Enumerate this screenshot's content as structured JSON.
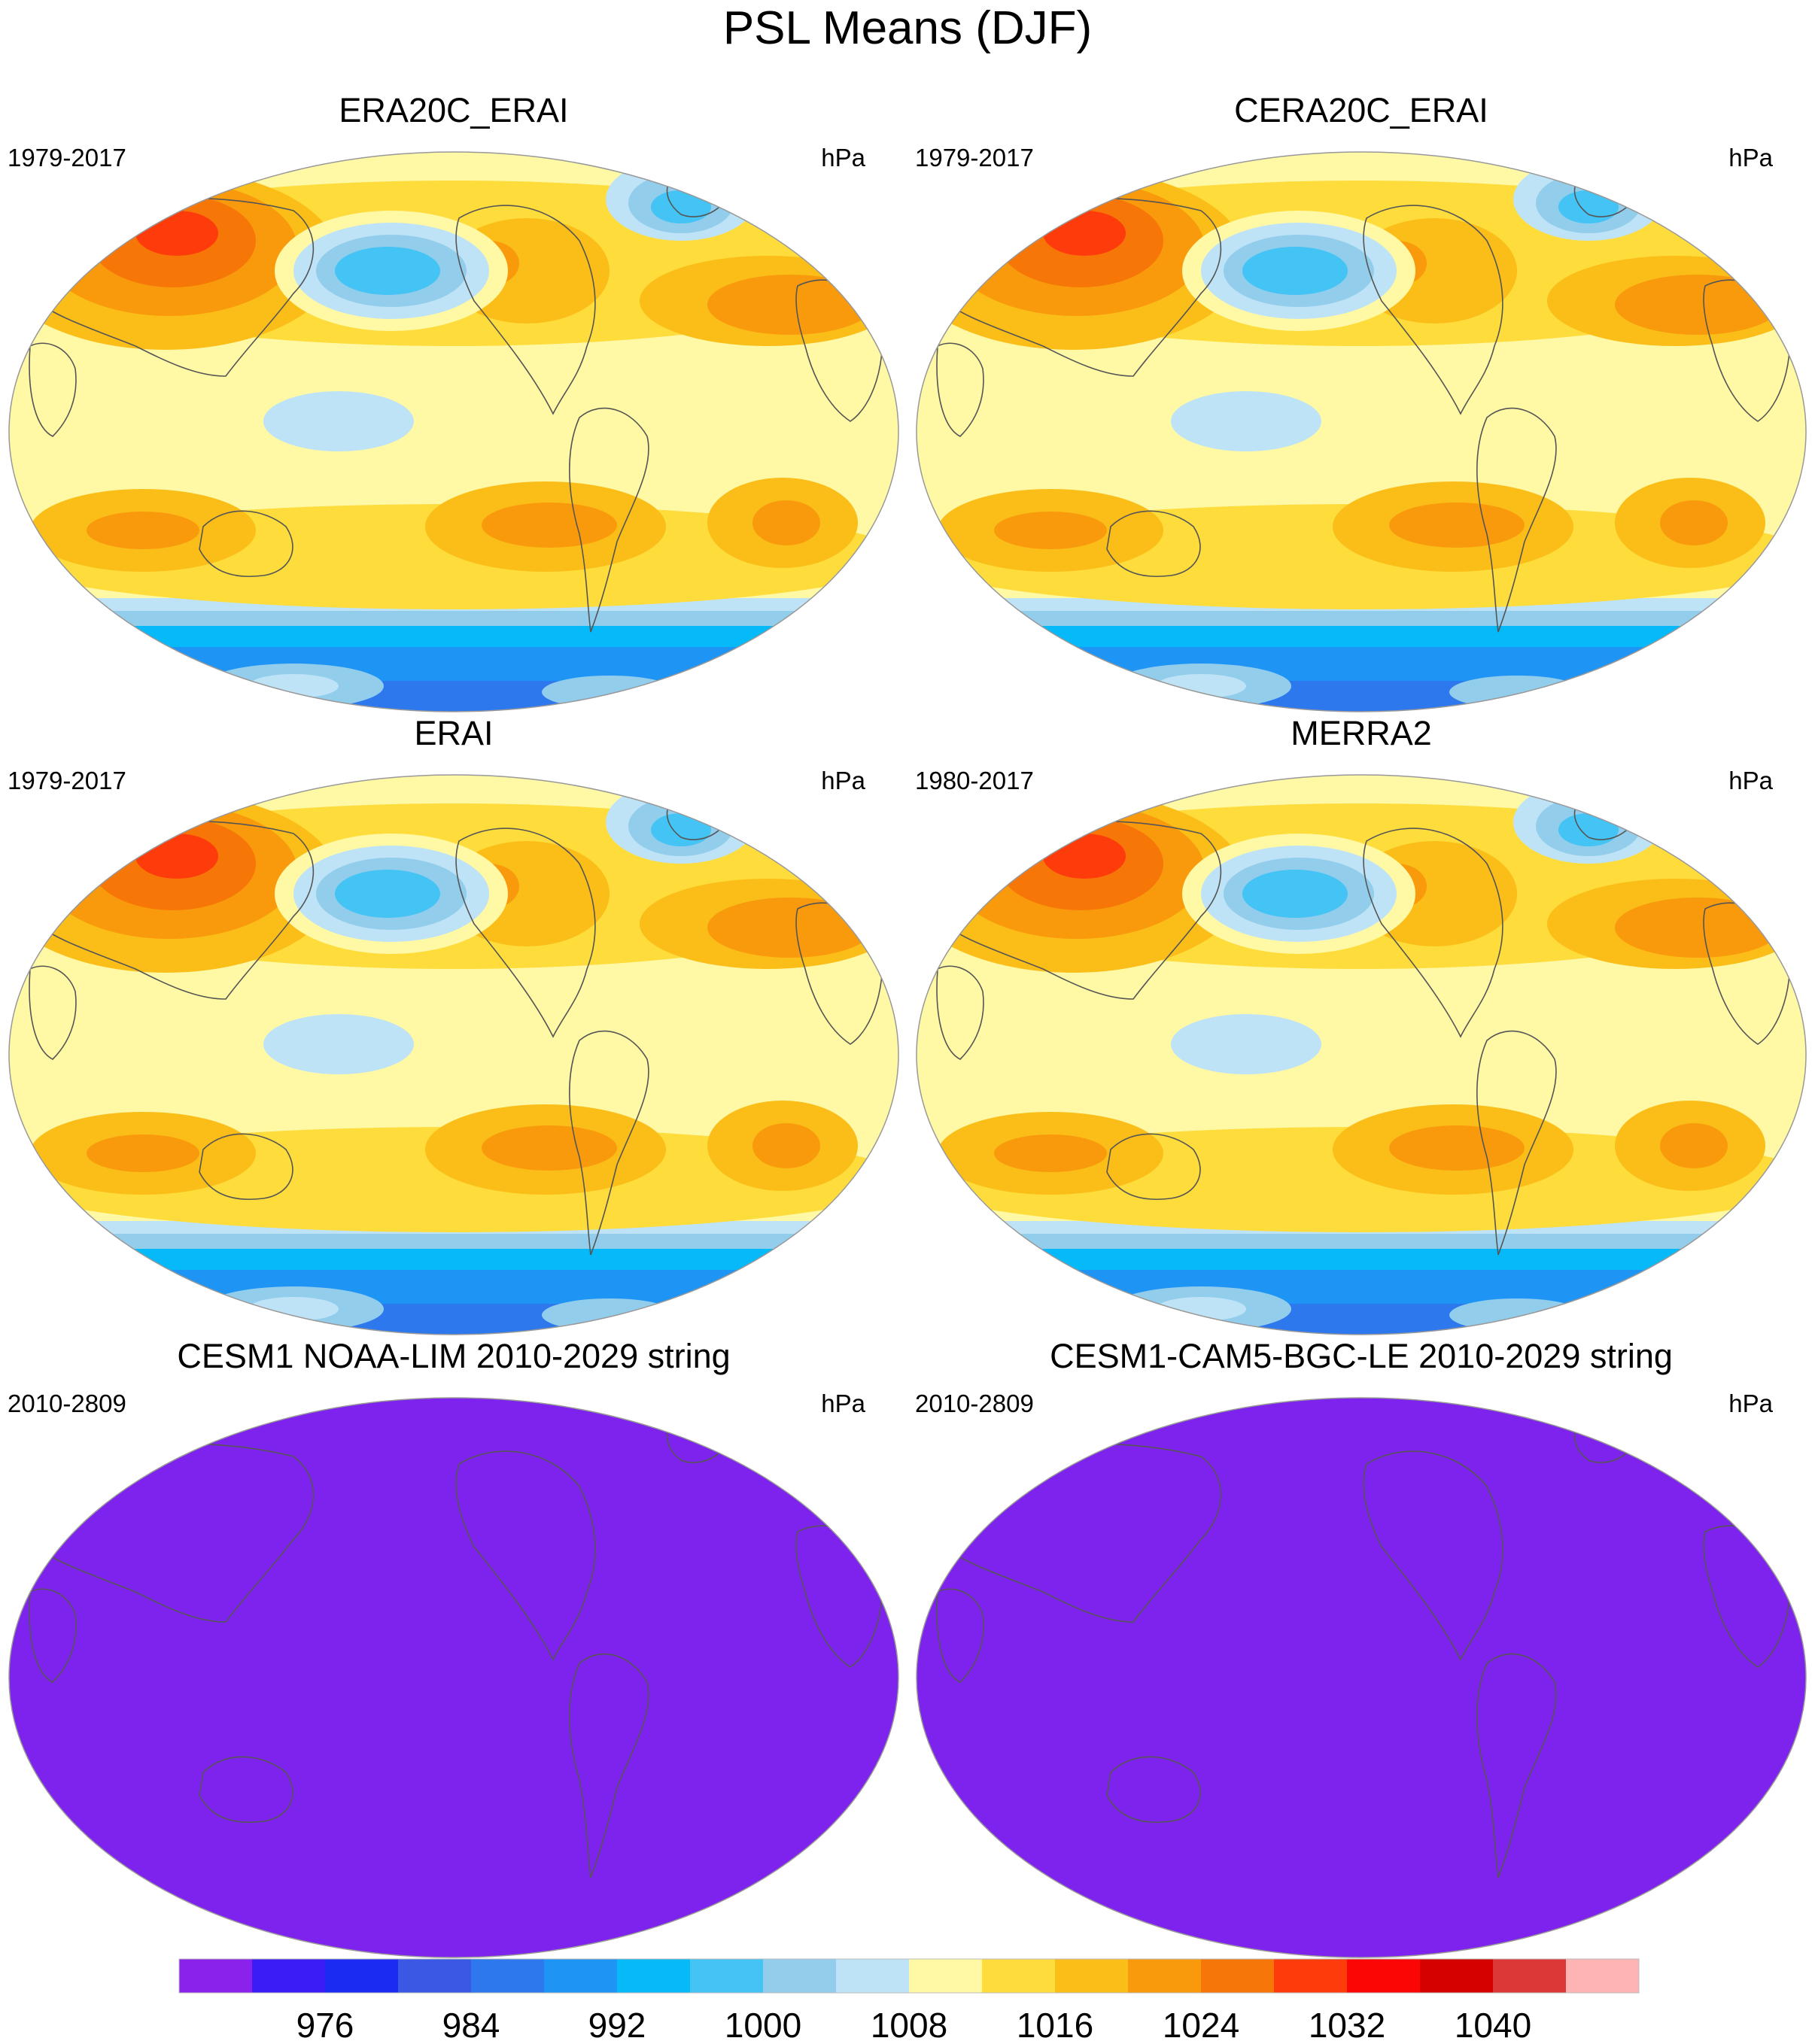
{
  "title": "PSL Means (DJF)",
  "panels": [
    {
      "title": "ERA20C_ERAI",
      "period": "1979-2017",
      "units": "hPa",
      "fill": "contours"
    },
    {
      "title": "CERA20C_ERAI",
      "period": "1979-2017",
      "units": "hPa",
      "fill": "contours"
    },
    {
      "title": "ERAI",
      "period": "1979-2017",
      "units": "hPa",
      "fill": "contours"
    },
    {
      "title": "MERRA2",
      "period": "1980-2017",
      "units": "hPa",
      "fill": "contours"
    },
    {
      "title": "CESM1 NOAA-LIM 2010-2029 string",
      "period": "2010-2809",
      "units": "hPa",
      "fill": "uniform"
    },
    {
      "title": "CESM1-CAM5-BGC-LE 2010-2029 string",
      "period": "2010-2809",
      "units": "hPa",
      "fill": "uniform"
    }
  ],
  "colorbar": {
    "colors": [
      "#8b22ec",
      "#3c1cf4",
      "#1c2bf2",
      "#3a58e3",
      "#2e78ee",
      "#1e95f4",
      "#06b9f8",
      "#44c3f5",
      "#93cdec",
      "#bfe3f6",
      "#fff8a5",
      "#fddc3c",
      "#fbbd17",
      "#f99a0d",
      "#f77608",
      "#fe3c0b",
      "#fc0505",
      "#d50000",
      "#dd3838",
      "#feb4b4"
    ],
    "labels": [
      "976",
      "984",
      "992",
      "1000",
      "1008",
      "1016",
      "1024",
      "1032",
      "1040"
    ]
  },
  "map_style": {
    "ocean_base": "#fff8a5",
    "uniform_fill": "#7e22ed",
    "coast_color": "#555555"
  }
}
